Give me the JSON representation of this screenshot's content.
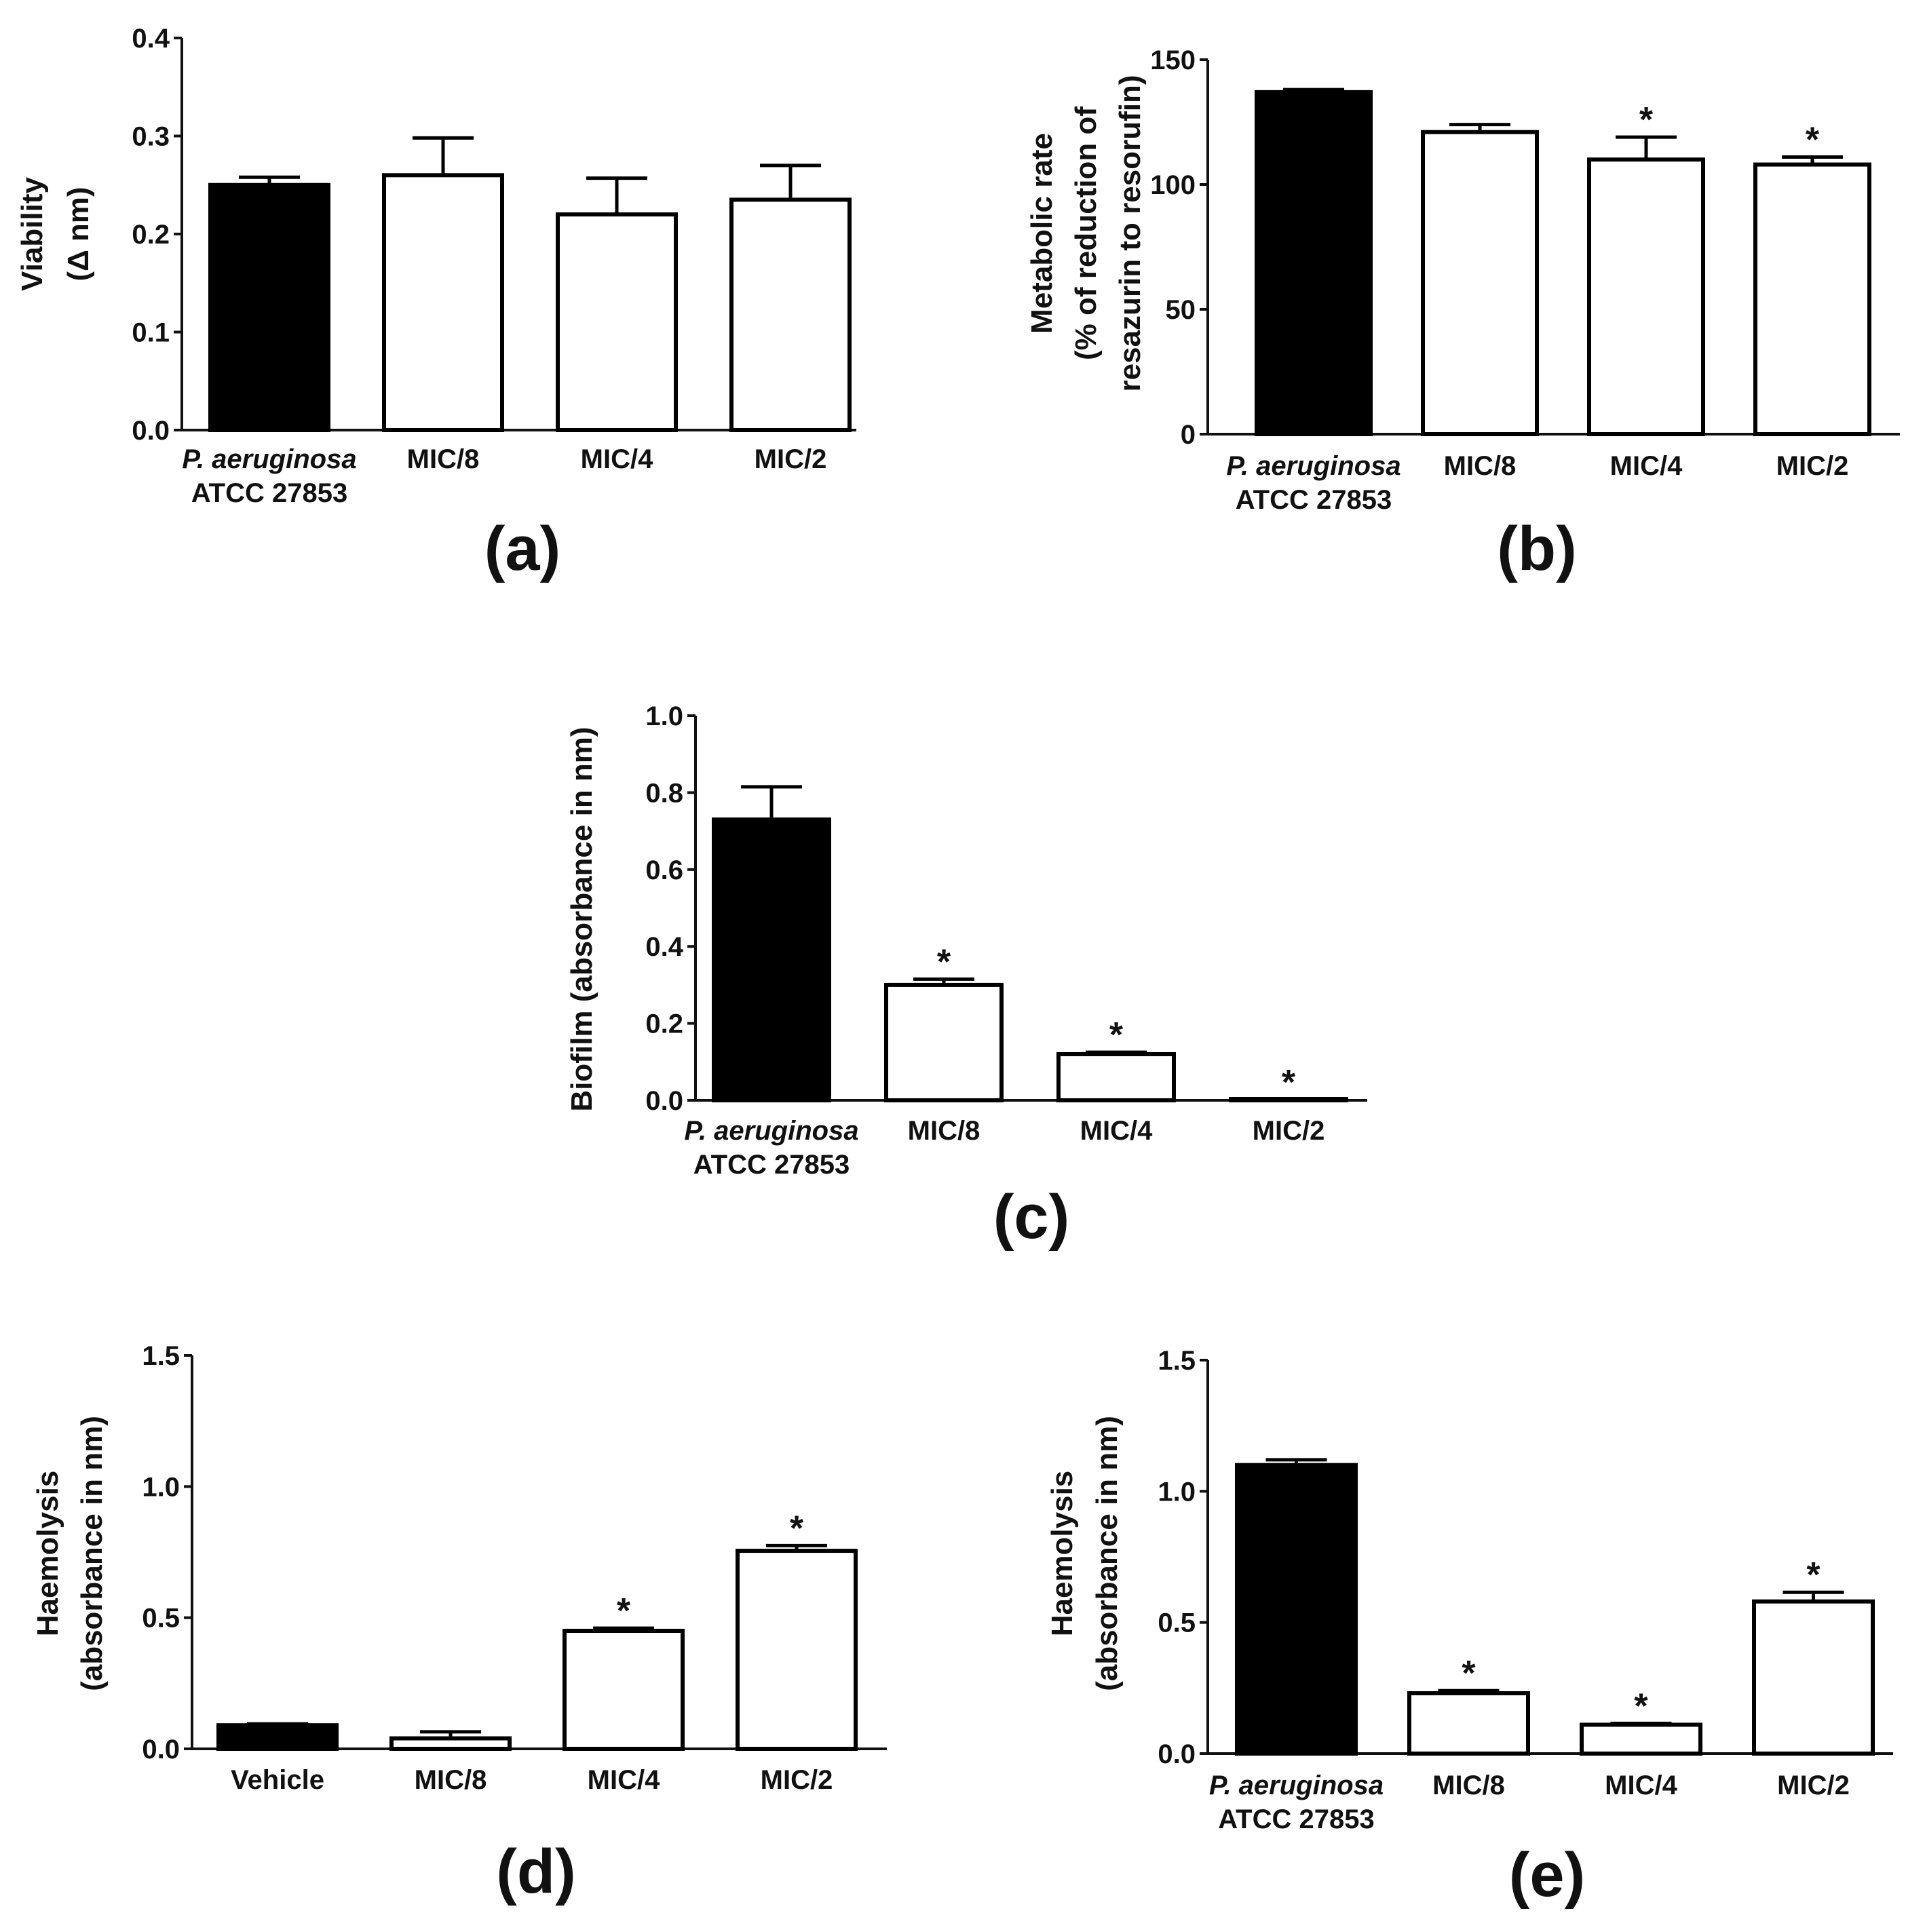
{
  "colors": {
    "control_bar": "#000000",
    "treated_bar": "#ffffff",
    "axis": "#111111"
  },
  "chart_data": [
    {
      "type": "bar",
      "panel_label": "(a)",
      "ylabel": [
        "Viability",
        "(Δ nm)"
      ],
      "categories": [
        [
          "P. aeruginosa",
          "ATCC 27853"
        ],
        [
          "MIC/8"
        ],
        [
          "MIC/4"
        ],
        [
          "MIC/2"
        ]
      ],
      "values": [
        0.25,
        0.26,
        0.22,
        0.235
      ],
      "errors": [
        0.008,
        0.038,
        0.037,
        0.035
      ],
      "significant": [
        false,
        false,
        false,
        false
      ],
      "filled": [
        true,
        false,
        false,
        false
      ],
      "ylim": [
        0,
        0.4
      ],
      "yticks": [
        "0.0",
        "0.1",
        "0.2",
        "0.3",
        "0.4"
      ]
    },
    {
      "type": "bar",
      "panel_label": "(b)",
      "ylabel": [
        "Metabolic rate",
        "(% of reduction of",
        "resazurin to resorufin)"
      ],
      "categories": [
        [
          "P. aeruginosa",
          "ATCC 27853"
        ],
        [
          "MIC/8"
        ],
        [
          "MIC/4"
        ],
        [
          "MIC/2"
        ]
      ],
      "values": [
        137,
        121,
        110,
        108
      ],
      "errors": [
        1,
        3,
        9,
        3
      ],
      "significant": [
        false,
        false,
        true,
        true
      ],
      "filled": [
        true,
        false,
        false,
        false
      ],
      "ylim": [
        0,
        150
      ],
      "yticks": [
        "0",
        "50",
        "100",
        "150"
      ]
    },
    {
      "type": "bar",
      "panel_label": "(c)",
      "ylabel": [
        "Biofilm (absorbance in nm)"
      ],
      "categories": [
        [
          "P. aeruginosa",
          "ATCC 27853"
        ],
        [
          "MIC/8"
        ],
        [
          "MIC/4"
        ],
        [
          "MIC/2"
        ]
      ],
      "values": [
        0.73,
        0.3,
        0.12,
        0.0
      ],
      "errors": [
        0.085,
        0.015,
        0.005,
        0.002
      ],
      "significant": [
        false,
        true,
        true,
        true
      ],
      "filled": [
        true,
        false,
        false,
        false
      ],
      "ylim": [
        0,
        1.0
      ],
      "yticks": [
        "0.0",
        "0.2",
        "0.4",
        "0.6",
        "0.8",
        "1.0"
      ]
    },
    {
      "type": "bar",
      "panel_label": "(d)",
      "ylabel": [
        "Haemolysis",
        "(absorbance in nm)"
      ],
      "categories": [
        [
          "Vehicle"
        ],
        [
          "MIC/8"
        ],
        [
          "MIC/4"
        ],
        [
          "MIC/2"
        ]
      ],
      "values": [
        0.09,
        0.04,
        0.45,
        0.755
      ],
      "errors": [
        0.005,
        0.025,
        0.01,
        0.02
      ],
      "significant": [
        false,
        false,
        true,
        true
      ],
      "filled": [
        true,
        false,
        false,
        false
      ],
      "ylim": [
        0,
        1.5
      ],
      "yticks": [
        "0.0",
        "0.5",
        "1.0",
        "1.5"
      ]
    },
    {
      "type": "bar",
      "panel_label": "(e)",
      "ylabel": [
        "Haemolysis",
        "(absorbance in nm)"
      ],
      "categories": [
        [
          "P. aeruginosa",
          "ATCC 27853"
        ],
        [
          "MIC/8"
        ],
        [
          "MIC/4"
        ],
        [
          "MIC/2"
        ]
      ],
      "values": [
        1.1,
        0.23,
        0.11,
        0.58
      ],
      "errors": [
        0.02,
        0.01,
        0.005,
        0.035
      ],
      "significant": [
        false,
        true,
        true,
        true
      ],
      "filled": [
        true,
        false,
        false,
        false
      ],
      "ylim": [
        0,
        1.5
      ],
      "yticks": [
        "0.0",
        "0.5",
        "1.0",
        "1.5"
      ]
    }
  ]
}
